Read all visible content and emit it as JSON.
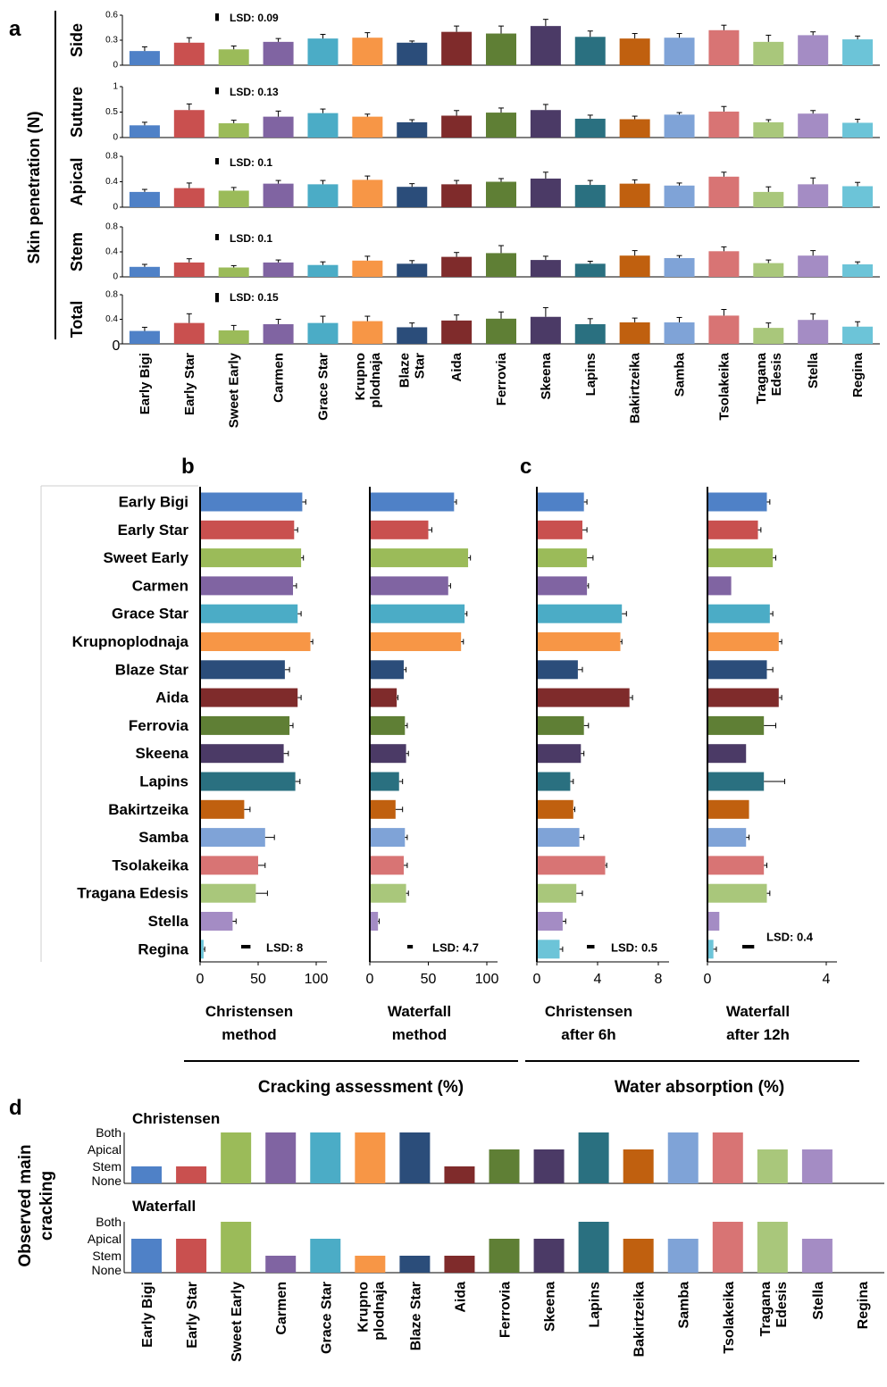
{
  "cultivars": [
    "Early Bigi",
    "Early Star",
    "Sweet Early",
    "Carmen",
    "Grace Star",
    "Krupnoplodnaja",
    "Blaze Star",
    "Aida",
    "Ferrovia",
    "Skeena",
    "Lapins",
    "Bakirtzeika",
    "Samba",
    "Tsolakeika",
    "Tragana Edesis",
    "Stella",
    "Regina"
  ],
  "cultivar_labels_a": [
    [
      "Early Bigi"
    ],
    [
      "Early Star"
    ],
    [
      "Sweet Early"
    ],
    [
      "Carmen"
    ],
    [
      "Grace Star"
    ],
    [
      "Krupno",
      "plodnaja"
    ],
    [
      "Blaze",
      "Star"
    ],
    [
      "Aida"
    ],
    [
      "Ferrovia"
    ],
    [
      "Skeena"
    ],
    [
      "Lapins"
    ],
    [
      "Bakirtzeika"
    ],
    [
      "Samba"
    ],
    [
      "Tsolakeika"
    ],
    [
      "Tragana",
      "Edesis"
    ],
    [
      "Stella"
    ],
    [
      "Regina"
    ]
  ],
  "cultivar_labels_d": [
    [
      "Early  Bigi"
    ],
    [
      "Early Star"
    ],
    [
      "Sweet  Early"
    ],
    [
      "Carmen"
    ],
    [
      "Grace Star"
    ],
    [
      "Krupno",
      "plodnaja"
    ],
    [
      "Blaze Star"
    ],
    [
      "Aida"
    ],
    [
      "Ferrovia"
    ],
    [
      "Skeena"
    ],
    [
      "Lapins"
    ],
    [
      "Bakirtzeika"
    ],
    [
      "Samba"
    ],
    [
      "Tsolakeika"
    ],
    [
      "Tragana",
      "Edesis"
    ],
    [
      "Stella"
    ],
    [
      "Regina"
    ]
  ],
  "colors": [
    "#4f81c7",
    "#c9504f",
    "#9bbb59",
    "#8064a2",
    "#4bacc6",
    "#f79646",
    "#2b4d7a",
    "#7f2b2b",
    "#5f7f35",
    "#4b3a66",
    "#2a7080",
    "#c0600f",
    "#7fa3d7",
    "#d87474",
    "#a9c77b",
    "#a48cc4",
    "#6cc4d8"
  ],
  "panel_letters": {
    "a": "a",
    "b": "b",
    "c": "c",
    "d": "d"
  },
  "panel_a": {
    "ylabel": "Skin penetration (N)",
    "rows": [
      {
        "name": "Side",
        "lsd_label": "LSD: 0.09",
        "lsd": 0.09,
        "ylim": [
          0,
          0.6
        ],
        "ticks": [
          "0",
          "0.3",
          "0.6"
        ],
        "tick_values": [
          0,
          0.3,
          0.6
        ],
        "values": [
          0.17,
          0.27,
          0.19,
          0.28,
          0.32,
          0.33,
          0.27,
          0.4,
          0.38,
          0.47,
          0.34,
          0.32,
          0.33,
          0.42,
          0.28,
          0.36,
          0.31
        ],
        "errors": [
          0.05,
          0.06,
          0.04,
          0.04,
          0.05,
          0.06,
          0.02,
          0.07,
          0.09,
          0.08,
          0.07,
          0.06,
          0.05,
          0.06,
          0.08,
          0.04,
          0.04
        ]
      },
      {
        "name": "Suture",
        "lsd_label": "LSD: 0.13",
        "lsd": 0.13,
        "ylim": [
          0,
          1
        ],
        "ticks": [
          "0",
          "0.5",
          "1"
        ],
        "tick_values": [
          0,
          0.5,
          1
        ],
        "values": [
          0.24,
          0.54,
          0.28,
          0.41,
          0.48,
          0.41,
          0.3,
          0.43,
          0.49,
          0.54,
          0.37,
          0.36,
          0.45,
          0.51,
          0.3,
          0.47,
          0.29
        ],
        "errors": [
          0.06,
          0.12,
          0.06,
          0.11,
          0.08,
          0.05,
          0.05,
          0.1,
          0.09,
          0.11,
          0.07,
          0.06,
          0.04,
          0.1,
          0.05,
          0.06,
          0.07
        ]
      },
      {
        "name": "Apical",
        "lsd_label": "LSD: 0.1",
        "lsd": 0.1,
        "ylim": [
          0,
          0.8
        ],
        "ticks": [
          "0",
          "0.4",
          "0.8"
        ],
        "tick_values": [
          0,
          0.4,
          0.8
        ],
        "values": [
          0.24,
          0.3,
          0.26,
          0.37,
          0.36,
          0.43,
          0.32,
          0.36,
          0.4,
          0.45,
          0.35,
          0.37,
          0.34,
          0.48,
          0.24,
          0.36,
          0.33
        ],
        "errors": [
          0.04,
          0.08,
          0.05,
          0.05,
          0.06,
          0.06,
          0.05,
          0.06,
          0.05,
          0.1,
          0.07,
          0.06,
          0.04,
          0.07,
          0.08,
          0.1,
          0.06
        ]
      },
      {
        "name": "Stem",
        "lsd_label": "LSD: 0.1",
        "lsd": 0.1,
        "ylim": [
          0,
          0.8
        ],
        "ticks": [
          "0",
          "0.4",
          "0.8"
        ],
        "tick_values": [
          0,
          0.4,
          0.8
        ],
        "values": [
          0.16,
          0.23,
          0.15,
          0.23,
          0.19,
          0.26,
          0.21,
          0.32,
          0.38,
          0.27,
          0.21,
          0.34,
          0.3,
          0.41,
          0.22,
          0.34,
          0.2
        ],
        "errors": [
          0.04,
          0.06,
          0.03,
          0.04,
          0.05,
          0.07,
          0.05,
          0.07,
          0.12,
          0.06,
          0.04,
          0.08,
          0.04,
          0.07,
          0.05,
          0.08,
          0.04
        ]
      },
      {
        "name": "Total",
        "lsd_label": "LSD: 0.15",
        "lsd": 0.15,
        "ylim": [
          0,
          0.8
        ],
        "ticks": [
          "0",
          "0.4",
          "0.8"
        ],
        "tick_values": [
          0,
          0.4,
          0.8
        ],
        "values": [
          0.21,
          0.34,
          0.22,
          0.32,
          0.34,
          0.37,
          0.27,
          0.38,
          0.41,
          0.44,
          0.32,
          0.35,
          0.35,
          0.46,
          0.26,
          0.39,
          0.28
        ],
        "errors": [
          0.06,
          0.15,
          0.08,
          0.08,
          0.11,
          0.08,
          0.07,
          0.09,
          0.11,
          0.15,
          0.09,
          0.07,
          0.08,
          0.1,
          0.08,
          0.1,
          0.08
        ]
      }
    ]
  },
  "panel_b": {
    "group_label": "Cracking assessment (%)",
    "charts": [
      {
        "title": [
          "Christensen",
          "method"
        ],
        "lsd_label": "LSD: 8",
        "lsd": 8,
        "xlim": [
          0,
          100
        ],
        "ticks": [
          "0",
          "50",
          "100"
        ],
        "tick_values": [
          0,
          50,
          100
        ],
        "values": [
          88,
          81,
          87,
          80,
          84,
          95,
          73,
          84,
          77,
          72,
          82,
          38,
          56,
          50,
          48,
          28,
          3
        ],
        "errors": [
          3,
          3,
          2,
          3,
          3,
          2,
          4,
          3,
          3,
          4,
          4,
          5,
          8,
          6,
          10,
          3,
          1
        ]
      },
      {
        "title": [
          "Waterfall",
          "method"
        ],
        "lsd_label": "LSD: 4.7",
        "lsd": 4.7,
        "xlim": [
          0,
          100
        ],
        "ticks": [
          "0",
          "50",
          "100"
        ],
        "tick_values": [
          0,
          50,
          100
        ],
        "values": [
          72,
          50,
          84,
          67,
          81,
          78,
          29,
          23,
          30,
          31,
          25,
          22,
          30,
          29,
          31,
          7,
          0
        ],
        "errors": [
          2,
          3,
          2,
          2,
          2,
          2,
          2,
          1,
          2,
          2,
          3,
          6,
          2,
          3,
          2,
          1,
          0
        ]
      }
    ]
  },
  "panel_c": {
    "group_label": "Water absorption (%)",
    "charts": [
      {
        "title": [
          "Christensen",
          "after 6h"
        ],
        "lsd_label": "LSD: 0.5",
        "lsd": 0.5,
        "xlim": [
          0,
          8
        ],
        "ticks": [
          "0",
          "4",
          "8"
        ],
        "tick_values": [
          0,
          4,
          8
        ],
        "values": [
          3.1,
          3.0,
          3.3,
          3.3,
          5.6,
          5.5,
          2.7,
          6.1,
          3.1,
          2.9,
          2.2,
          2.4,
          2.8,
          4.5,
          2.6,
          1.7,
          1.5
        ],
        "errors": [
          0.2,
          0.3,
          0.4,
          0.1,
          0.3,
          0.1,
          0.3,
          0.2,
          0.3,
          0.2,
          0.2,
          0.1,
          0.3,
          0.1,
          0.4,
          0.2,
          0.2
        ]
      },
      {
        "title": [
          "Waterfall",
          "after 12h"
        ],
        "lsd_label": "LSD: 0.4",
        "lsd": 0.4,
        "xlim": [
          0,
          4
        ],
        "ticks": [
          "0",
          "4"
        ],
        "tick_values": [
          0,
          4
        ],
        "values": [
          2.0,
          1.7,
          2.2,
          0.8,
          2.1,
          2.4,
          2.0,
          2.4,
          1.9,
          1.3,
          1.9,
          1.4,
          1.3,
          1.9,
          2.0,
          0.4,
          0.2
        ],
        "errors": [
          0.1,
          0.1,
          0.1,
          0.0,
          0.1,
          0.1,
          0.2,
          0.1,
          0.4,
          0.0,
          0.7,
          0.0,
          0.1,
          0.1,
          0.1,
          0.0,
          0.1
        ]
      }
    ]
  },
  "panel_d": {
    "ylabel": [
      "Observed main",
      "cracking"
    ],
    "levels": [
      "None",
      "Stem",
      "Apical",
      "Both"
    ],
    "series": [
      {
        "name": "Christensen",
        "values": [
          1,
          1,
          3,
          3,
          3,
          3,
          3,
          1,
          2,
          2,
          3,
          2,
          3,
          3,
          2,
          2,
          0
        ]
      },
      {
        "name": "Waterfall",
        "values": [
          2,
          2,
          3,
          1,
          2,
          1,
          1,
          1,
          2,
          2,
          3,
          2,
          2,
          3,
          3,
          2,
          0
        ]
      }
    ]
  }
}
